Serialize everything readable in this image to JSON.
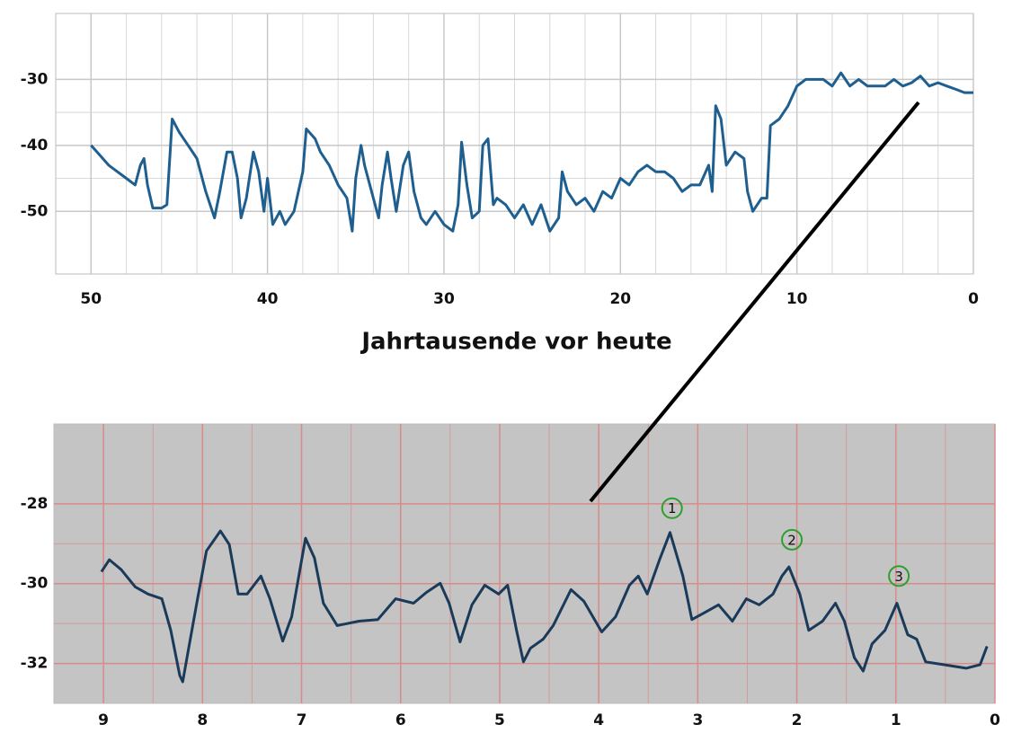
{
  "chart_data": [
    {
      "type": "line",
      "x_label": "Jahrtausende vor heute",
      "xlim": [
        52,
        0
      ],
      "xticks": [
        50,
        40,
        30,
        20,
        10,
        0
      ],
      "ylim": [
        -59.5,
        -20
      ],
      "yticks": [
        -30,
        -40,
        -50
      ],
      "grid": true,
      "x": [
        50,
        49.5,
        49,
        48.5,
        48,
        47.5,
        47.2,
        47,
        46.8,
        46.5,
        46,
        45.7,
        45.4,
        45,
        44.5,
        44,
        43.5,
        43,
        42.7,
        42.3,
        42,
        41.7,
        41.5,
        41.2,
        40.8,
        40.5,
        40.2,
        40,
        39.7,
        39.3,
        39,
        38.5,
        38,
        37.8,
        37.3,
        37,
        36.5,
        36,
        35.5,
        35.2,
        35,
        34.7,
        34.5,
        34,
        33.7,
        33.5,
        33.2,
        33,
        32.7,
        32.3,
        32,
        31.7,
        31.3,
        31,
        30.5,
        30,
        29.5,
        29.2,
        29,
        28.7,
        28.4,
        28,
        27.8,
        27.5,
        27.2,
        27,
        26.5,
        26,
        25.5,
        25,
        24.5,
        24,
        23.5,
        23.3,
        23,
        22.5,
        22,
        21.5,
        21,
        20.5,
        20,
        19.5,
        19,
        18.5,
        18,
        17.5,
        17,
        16.5,
        16,
        15.5,
        15,
        14.8,
        14.6,
        14.3,
        14,
        13.5,
        13,
        12.8,
        12.5,
        12,
        11.7,
        11.5,
        11,
        10.5,
        10,
        9.5,
        9,
        8.5,
        8,
        7.5,
        7,
        6.5,
        6,
        5.5,
        5,
        4.5,
        4,
        3.5,
        3,
        2.5,
        2,
        1.5,
        1,
        0.5,
        0
      ],
      "series": [
        {
          "color": "#1f5f8f",
          "values": [
            -40,
            -41.5,
            -43,
            -44,
            -45,
            -46,
            -43,
            -42,
            -46,
            -49.5,
            -49.5,
            -49,
            -36,
            -38,
            -40,
            -42,
            -47,
            -51,
            -47,
            -41,
            -41,
            -45,
            -51,
            -48,
            -41,
            -44,
            -50,
            -45,
            -52,
            -50,
            -52,
            -50,
            -44,
            -37.5,
            -39,
            -41,
            -43,
            -46,
            -48,
            -53,
            -45,
            -40,
            -43,
            -48,
            -51,
            -46,
            -41,
            -45,
            -50,
            -43,
            -41,
            -47,
            -51,
            -52,
            -50,
            -52,
            -53,
            -49,
            -39.5,
            -46,
            -51,
            -50,
            -40,
            -39,
            -49,
            -48,
            -49,
            -51,
            -49,
            -52,
            -49,
            -53,
            -51,
            -44,
            -47,
            -49,
            -48,
            -50,
            -47,
            -48,
            -45,
            -46,
            -44,
            -43,
            -44,
            -44,
            -45,
            -47,
            -46,
            -46,
            -43,
            -47,
            -34,
            -36,
            -43,
            -41,
            -42,
            -47,
            -50,
            -48,
            -48,
            -37,
            -36,
            -34,
            -31,
            -30,
            -30,
            -30,
            -31,
            -29,
            -31,
            -30,
            -31,
            -31,
            -31,
            -30,
            -31,
            -30.5,
            -29.5,
            -31,
            -30.5,
            -31,
            -31.5,
            -32,
            -32
          ]
        }
      ]
    },
    {
      "type": "line",
      "xlim": [
        9.5,
        0
      ],
      "xticks": [
        9,
        8,
        7,
        6,
        5,
        4,
        3,
        2,
        1,
        0
      ],
      "ylim": [
        -33,
        -26
      ],
      "yticks": [
        -28,
        -30,
        -32
      ],
      "grid": true,
      "x": [
        9.02,
        8.94,
        8.82,
        8.68,
        8.55,
        8.41,
        8.32,
        8.23,
        8.2,
        8.14,
        8.05,
        7.96,
        7.82,
        7.73,
        7.64,
        7.55,
        7.41,
        7.32,
        7.19,
        7.1,
        6.96,
        6.87,
        6.78,
        6.64,
        6.42,
        6.23,
        6.05,
        5.87,
        5.74,
        5.6,
        5.51,
        5.4,
        5.28,
        5.15,
        5.01,
        4.92,
        4.83,
        4.76,
        4.69,
        4.56,
        4.46,
        4.28,
        4.15,
        3.97,
        3.83,
        3.69,
        3.6,
        3.51,
        3.38,
        3.28,
        3.15,
        3.06,
        2.92,
        2.79,
        2.65,
        2.51,
        2.38,
        2.24,
        2.15,
        2.08,
        1.97,
        1.88,
        1.74,
        1.61,
        1.52,
        1.42,
        1.33,
        1.24,
        1.11,
        0.99,
        0.88,
        0.79,
        0.7,
        0.52,
        0.29,
        0.15,
        0.08
      ],
      "series": [
        {
          "color": "#1a3a5a",
          "values": [
            -29.7,
            -29.4,
            -29.65,
            -30.08,
            -30.26,
            -30.38,
            -31.17,
            -32.3,
            -32.46,
            -31.62,
            -30.38,
            -29.18,
            -28.68,
            -29.02,
            -30.26,
            -30.26,
            -29.81,
            -30.38,
            -31.44,
            -30.83,
            -28.86,
            -29.36,
            -30.49,
            -31.05,
            -30.94,
            -30.9,
            -30.38,
            -30.49,
            -30.22,
            -29.99,
            -30.49,
            -31.46,
            -30.53,
            -30.04,
            -30.26,
            -30.04,
            -31.17,
            -31.96,
            -31.62,
            -31.39,
            -31.05,
            -30.15,
            -30.44,
            -31.21,
            -30.83,
            -30.04,
            -29.81,
            -30.26,
            -29.36,
            -28.72,
            -29.81,
            -30.9,
            -30.71,
            -30.53,
            -30.94,
            -30.38,
            -30.53,
            -30.26,
            -29.81,
            -29.58,
            -30.26,
            -31.17,
            -30.94,
            -30.49,
            -30.94,
            -31.85,
            -32.19,
            -31.51,
            -31.17,
            -30.49,
            -31.28,
            -31.39,
            -31.96,
            -32.03,
            -32.12,
            -32.03,
            -31.57
          ]
        }
      ],
      "annotations": [
        {
          "text": "1",
          "x": 3.26,
          "y": -28.11
        },
        {
          "text": "2",
          "x": 2.05,
          "y": -28.9
        },
        {
          "text": "3",
          "x": 0.97,
          "y": -29.81
        }
      ]
    }
  ]
}
